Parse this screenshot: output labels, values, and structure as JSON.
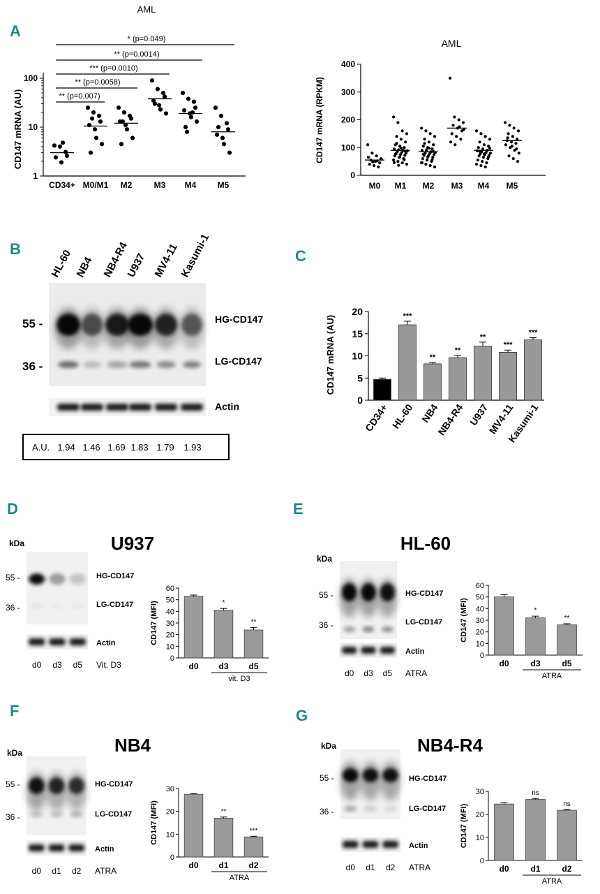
{
  "figure": {
    "panel_letters": [
      "A",
      "B",
      "C",
      "D",
      "E",
      "F",
      "G"
    ],
    "kda_label": "kDa",
    "aml_header": "AML"
  },
  "panel_A_left": {
    "header": "AML",
    "ylabel": "CD147 mRNA (AU)",
    "yticks": [
      "1",
      "10",
      "100"
    ],
    "categories": [
      "CD34+",
      "M0/M1",
      "M2",
      "M3",
      "M4",
      "M5"
    ],
    "brackets": [
      {
        "text": "* (p=0.049)",
        "to": "M5"
      },
      {
        "text": "** (p=0.0014)",
        "to": "M4"
      },
      {
        "text": "*** (p=0.0010)",
        "to": "M3"
      },
      {
        "text": "** (p=0.0058)",
        "to": "M2"
      },
      {
        "text": "** (p=0.007)",
        "to": "M0/M1"
      }
    ]
  },
  "panel_A_right": {
    "title": "AML",
    "ylabel": "CD147 mRNA (RPKM)",
    "yticks": [
      "0",
      "100",
      "200",
      "300",
      "400"
    ],
    "categories": [
      "M0",
      "M1",
      "M2",
      "M3",
      "M4",
      "M5"
    ]
  },
  "panel_B": {
    "lanes": [
      "HL-60",
      "NB4",
      "NB4-R4",
      "U937",
      "MV4-11",
      "Kasumi-1"
    ],
    "markers": [
      "55 -",
      "36 -"
    ],
    "band_labels": [
      "HG-CD147",
      "LG-CD147"
    ],
    "actin": "Actin",
    "au_label": "A.U.",
    "au_values": [
      "1.94",
      "1.46",
      "1.69",
      "1.83",
      "1.79",
      "1.93"
    ]
  },
  "panel_C": {
    "ylabel": "CD147 mRNA (AU)",
    "yticks": [
      "0",
      "5",
      "10",
      "15",
      "20"
    ],
    "bars": [
      {
        "label": "CD34+",
        "sig": "",
        "color": "#000000"
      },
      {
        "label": "HL-60",
        "sig": "***",
        "color": "#999999"
      },
      {
        "label": "NB4",
        "sig": "**",
        "color": "#999999"
      },
      {
        "label": "NB4-R4",
        "sig": "**",
        "color": "#999999"
      },
      {
        "label": "U937",
        "sig": "**",
        "color": "#999999"
      },
      {
        "label": "MV4-11",
        "sig": "***",
        "color": "#999999"
      },
      {
        "label": "Kasumi-1",
        "sig": "***",
        "color": "#999999"
      }
    ]
  },
  "panel_D": {
    "title": "U937",
    "kda": "kDa",
    "markers": [
      "55 -",
      "36 -"
    ],
    "bands": [
      "HG-CD147",
      "LG-CD147"
    ],
    "actin": "Actin",
    "lanes": [
      "d0",
      "d3",
      "d5"
    ],
    "treatment": "Vit. D3",
    "ylabel": "CD147 (MFI)",
    "yticks": [
      "0",
      "10",
      "20",
      "30",
      "40",
      "50",
      "60"
    ],
    "bar_labels": [
      "d0",
      "d3",
      "d5"
    ],
    "sig": [
      "",
      "*",
      "**"
    ],
    "group_label": "vit. D3"
  },
  "panel_E": {
    "title": "HL-60",
    "kda": "kDa",
    "markers": [
      "55 -",
      "36 -"
    ],
    "bands": [
      "HG-CD147",
      "LG-CD147"
    ],
    "actin": "Actin",
    "lanes": [
      "d0",
      "d3",
      "d5"
    ],
    "treatment": "ATRA",
    "ylabel": "CD147 (MFI)",
    "yticks": [
      "0",
      "10",
      "20",
      "30",
      "40",
      "50",
      "60"
    ],
    "bar_labels": [
      "d0",
      "d3",
      "d5"
    ],
    "sig": [
      "",
      "*",
      "**"
    ],
    "group_label": "ATRA"
  },
  "panel_F": {
    "title": "NB4",
    "kda": "kDa",
    "markers": [
      "55 -",
      "36 -"
    ],
    "bands": [
      "HG-CD147",
      "LG-CD147"
    ],
    "actin": "Actin",
    "lanes": [
      "d0",
      "d1",
      "d2"
    ],
    "treatment": "ATRA",
    "ylabel": "CD147 (MFI)",
    "yticks": [
      "0",
      "10",
      "20",
      "30"
    ],
    "bar_labels": [
      "d0",
      "d1",
      "d2"
    ],
    "sig": [
      "",
      "**",
      "***"
    ],
    "group_label": "ATRA"
  },
  "panel_G": {
    "title": "NB4-R4",
    "kda": "kDa",
    "markers": [
      "55 -",
      "36 -"
    ],
    "bands": [
      "HG-CD147",
      "LG-CD147"
    ],
    "actin": "Actin",
    "lanes": [
      "d0",
      "d1",
      "d2"
    ],
    "treatment": "ATRA",
    "ylabel": "CD147 (MFI)",
    "yticks": [
      "0",
      "10",
      "20",
      "30"
    ],
    "bar_labels": [
      "d0",
      "d1",
      "d2"
    ],
    "sig": [
      "",
      "ns",
      "ns"
    ],
    "group_label": "ATRA"
  },
  "chart_data": [
    {
      "type": "scatter",
      "id": "A_left",
      "title": "AML",
      "ylabel": "CD147 mRNA (AU)",
      "yscale": "log",
      "ylim": [
        1,
        100
      ],
      "categories": [
        "CD34+",
        "M0/M1",
        "M2",
        "M3",
        "M4",
        "M5"
      ],
      "medians": [
        3.0,
        10.5,
        12,
        38,
        19,
        8
      ],
      "points": [
        [
          4.2,
          4.0,
          3.1,
          2.6,
          2.4,
          1.9,
          4.8
        ],
        [
          25,
          20,
          17,
          13,
          11,
          9,
          6,
          4.5,
          3,
          15
        ],
        [
          25,
          20,
          17,
          15,
          13,
          11,
          9,
          6,
          4.5,
          13
        ],
        [
          90,
          60,
          50,
          42,
          35,
          28,
          23,
          19,
          30
        ],
        [
          50,
          38,
          33,
          25,
          22,
          19,
          16,
          13,
          10,
          8,
          20
        ],
        [
          25,
          17,
          12,
          9,
          7,
          6,
          4.5,
          3,
          10
        ]
      ]
    },
    {
      "type": "scatter",
      "id": "A_right",
      "title": "AML",
      "ylabel": "CD147 mRNA (RPKM)",
      "ylim": [
        0,
        400
      ],
      "categories": [
        "M0",
        "M1",
        "M2",
        "M3",
        "M4",
        "M5"
      ],
      "medians": [
        55,
        90,
        85,
        170,
        90,
        125
      ],
      "points": [
        [
          110,
          80,
          70,
          60,
          55,
          50,
          45,
          40,
          35,
          30,
          65,
          48,
          52,
          58
        ],
        [
          210,
          190,
          160,
          150,
          140,
          130,
          120,
          110,
          105,
          100,
          95,
          92,
          90,
          88,
          85,
          82,
          80,
          78,
          75,
          72,
          70,
          65,
          60,
          55,
          50,
          45,
          40,
          115,
          98,
          86,
          76,
          66,
          56,
          46,
          36
        ],
        [
          170,
          160,
          150,
          140,
          130,
          120,
          110,
          105,
          100,
          95,
          90,
          88,
          85,
          82,
          80,
          78,
          75,
          72,
          70,
          65,
          60,
          55,
          50,
          45,
          40,
          35,
          30,
          115,
          98,
          86,
          76,
          66,
          56,
          46,
          92,
          84
        ],
        [
          350,
          210,
          200,
          190,
          180,
          170,
          160,
          150,
          140,
          130,
          120,
          110,
          175,
          165
        ],
        [
          160,
          150,
          140,
          130,
          120,
          110,
          105,
          100,
          95,
          90,
          88,
          85,
          82,
          80,
          78,
          75,
          72,
          70,
          65,
          60,
          55,
          50,
          45,
          40,
          35,
          30,
          97,
          87,
          77,
          67
        ],
        [
          190,
          180,
          170,
          160,
          150,
          140,
          130,
          125,
          120,
          115,
          110,
          100,
          90,
          80,
          70,
          60,
          50,
          135,
          105,
          95
        ]
      ]
    },
    {
      "type": "bar",
      "id": "C",
      "ylabel": "CD147 mRNA (AU)",
      "ylim": [
        0,
        20
      ],
      "categories": [
        "CD34+",
        "HL-60",
        "NB4",
        "NB4-R4",
        "U937",
        "MV4-11",
        "Kasumi-1"
      ],
      "values": [
        4.7,
        17.0,
        8.2,
        9.6,
        12.2,
        10.8,
        13.6
      ],
      "errors": [
        0.3,
        0.8,
        0.3,
        0.5,
        0.9,
        0.5,
        0.5
      ]
    },
    {
      "type": "bar",
      "id": "D",
      "title": "U937",
      "ylabel": "CD147 (MFI)",
      "ylim": [
        0,
        60
      ],
      "categories": [
        "d0",
        "d3",
        "d5"
      ],
      "values": [
        53,
        41,
        24
      ],
      "errors": [
        1,
        1.5,
        2
      ]
    },
    {
      "type": "bar",
      "id": "E",
      "title": "HL-60",
      "ylabel": "CD147 (MFI)",
      "ylim": [
        0,
        60
      ],
      "categories": [
        "d0",
        "d3",
        "d5"
      ],
      "values": [
        50,
        32,
        26
      ],
      "errors": [
        2,
        1.5,
        1
      ]
    },
    {
      "type": "bar",
      "id": "F",
      "title": "NB4",
      "ylabel": "CD147 (MFI)",
      "ylim": [
        0,
        30
      ],
      "categories": [
        "d0",
        "d1",
        "d2"
      ],
      "values": [
        27.5,
        17,
        8.8
      ],
      "errors": [
        0.3,
        0.5,
        0.3
      ]
    },
    {
      "type": "bar",
      "id": "G",
      "title": "NB4-R4",
      "ylabel": "CD147 (MFI)",
      "ylim": [
        0,
        30
      ],
      "categories": [
        "d0",
        "d1",
        "d2"
      ],
      "values": [
        24.5,
        26.5,
        21.8
      ],
      "errors": [
        0.6,
        0.4,
        0.3
      ]
    }
  ]
}
